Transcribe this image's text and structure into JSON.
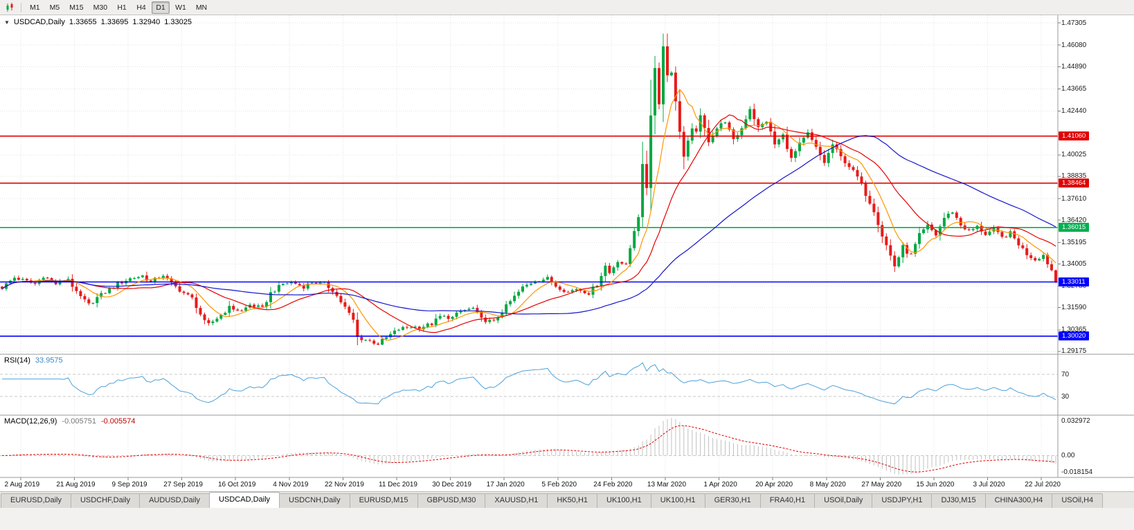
{
  "toolbar": {
    "timeframes": [
      {
        "label": "M1",
        "active": false
      },
      {
        "label": "M5",
        "active": false
      },
      {
        "label": "M15",
        "active": false
      },
      {
        "label": "M30",
        "active": false
      },
      {
        "label": "H1",
        "active": false
      },
      {
        "label": "H4",
        "active": false
      },
      {
        "label": "D1",
        "active": true
      },
      {
        "label": "W1",
        "active": false
      },
      {
        "label": "MN",
        "active": false
      }
    ]
  },
  "chart_header": {
    "symbol": "USDCAD,Daily",
    "open": "1.33655",
    "high": "1.33695",
    "low": "1.32940",
    "close": "1.33025"
  },
  "indicators": {
    "rsi": {
      "name": "RSI(14)",
      "value": "33.9575",
      "line_color": "#4da0d8",
      "levels": [
        "70",
        "30"
      ]
    },
    "macd": {
      "name": "MACD(12,26,9)",
      "value_main": "-0.005751",
      "value_signal": "-0.005574",
      "scale_labels": [
        "0.032972",
        "0.00",
        "-0.018154"
      ],
      "histogram_color": "#c0c0c0",
      "signal_color": "#e00000"
    }
  },
  "tabs": [
    {
      "label": "EURUSD,Daily",
      "active": false
    },
    {
      "label": "USDCHF,Daily",
      "active": false
    },
    {
      "label": "AUDUSD,Daily",
      "active": false
    },
    {
      "label": "USDCAD,Daily",
      "active": true
    },
    {
      "label": "USDCNH,Daily",
      "active": false
    },
    {
      "label": "EURUSD,M15",
      "active": false
    },
    {
      "label": "GBPUSD,M30",
      "active": false
    },
    {
      "label": "XAUUSD,H1",
      "active": false
    },
    {
      "label": "HK50,H1",
      "active": false
    },
    {
      "label": "UK100,H1",
      "active": false
    },
    {
      "label": "UK100,H1",
      "active": false
    },
    {
      "label": "GER30,H1",
      "active": false
    },
    {
      "label": "FRA40,H1",
      "active": false
    },
    {
      "label": "USOil,Daily",
      "active": false
    },
    {
      "label": "USDJPY,H1",
      "active": false
    },
    {
      "label": "DJ30,M15",
      "active": false
    },
    {
      "label": "CHINA300,H4",
      "active": false
    },
    {
      "label": "USOil,H4",
      "active": false
    }
  ],
  "chart_data": {
    "type": "candlestick",
    "symbol": "USDCAD",
    "timeframe": "Daily",
    "bars": 256,
    "visible_price_range": [
      1.2902,
      1.4773
    ],
    "current_bar": {
      "open": 1.33655,
      "high": 1.33695,
      "low": 1.3294,
      "close": 1.33025
    },
    "up_color": "#00a843",
    "down_color": "#e81b1b",
    "high_extreme": 1.4672,
    "low_extreme": 1.2952,
    "y_tick_labels": [
      "1.47305",
      "1.46080",
      "1.44890",
      "1.43665",
      "1.42440",
      "1.40025",
      "1.38835",
      "1.37610",
      "1.36420",
      "1.35195",
      "1.34005",
      "1.32780",
      "1.31590",
      "1.30365",
      "1.29175"
    ],
    "x_tick_labels": [
      "2 Aug 2019",
      "21 Aug 2019",
      "9 Sep 2019",
      "27 Sep 2019",
      "16 Oct 2019",
      "4 Nov 2019",
      "22 Nov 2019",
      "11 Dec 2019",
      "30 Dec 2019",
      "17 Jan 2020",
      "5 Feb 2020",
      "24 Feb 2020",
      "13 Mar 2020",
      "1 Apr 2020",
      "20 Apr 2020",
      "8 May 2020",
      "27 May 2020",
      "15 Jun 2020",
      "3 Jul 2020",
      "22 Jul 2020"
    ],
    "levels": [
      {
        "price": 1.4106,
        "label": "1.41060",
        "color": "#e00000",
        "kind": "resistance"
      },
      {
        "price": 1.38464,
        "label": "1.38464",
        "color": "#e00000",
        "kind": "resistance"
      },
      {
        "price": 1.36015,
        "label": "1.36015",
        "color": "#00b050",
        "kind": "pivot"
      },
      {
        "price": 1.33011,
        "label": "1.33011",
        "color": "#0000ff",
        "kind": "support"
      },
      {
        "price": 1.3002,
        "label": "1.30020",
        "color": "#0000ff",
        "kind": "support"
      }
    ],
    "moving_averages": [
      {
        "period": 8,
        "color": "#ff9500"
      },
      {
        "period": 20,
        "color": "#e60000"
      },
      {
        "period": 55,
        "color": "#1414cc"
      }
    ],
    "rsi": {
      "period": 14,
      "current": 33.9575
    },
    "macd": {
      "fast": 12,
      "slow": 26,
      "signal": 9,
      "current_main": -0.005751,
      "current_signal": -0.005574
    },
    "close_keypoints": [
      [
        0,
        1.327
      ],
      [
        3,
        1.3325
      ],
      [
        8,
        1.329
      ],
      [
        10,
        1.3335
      ],
      [
        13,
        1.329
      ],
      [
        16,
        1.332
      ],
      [
        18,
        1.324
      ],
      [
        21,
        1.3175
      ],
      [
        23,
        1.3215
      ],
      [
        26,
        1.326
      ],
      [
        28,
        1.329
      ],
      [
        31,
        1.332
      ],
      [
        34,
        1.3335
      ],
      [
        36,
        1.33
      ],
      [
        39,
        1.334
      ],
      [
        41,
        1.329
      ],
      [
        44,
        1.324
      ],
      [
        46,
        1.321
      ],
      [
        49,
        1.308
      ],
      [
        50,
        1.3065
      ],
      [
        53,
        1.312
      ],
      [
        55,
        1.316
      ],
      [
        58,
        1.314
      ],
      [
        60,
        1.3175
      ],
      [
        63,
        1.3155
      ],
      [
        65,
        1.324
      ],
      [
        68,
        1.329
      ],
      [
        70,
        1.33
      ],
      [
        73,
        1.3275
      ],
      [
        75,
        1.33
      ],
      [
        78,
        1.329
      ],
      [
        80,
        1.3255
      ],
      [
        83,
        1.316
      ],
      [
        85,
        1.309
      ],
      [
        86,
        1.2995
      ],
      [
        89,
        1.2975
      ],
      [
        91,
        1.296
      ],
      [
        94,
        1.301
      ],
      [
        96,
        1.304
      ],
      [
        99,
        1.3055
      ],
      [
        101,
        1.305
      ],
      [
        104,
        1.307
      ],
      [
        106,
        1.311
      ],
      [
        109,
        1.3105
      ],
      [
        111,
        1.314
      ],
      [
        114,
        1.3155
      ],
      [
        116,
        1.3095
      ],
      [
        119,
        1.308
      ],
      [
        121,
        1.314
      ],
      [
        124,
        1.322
      ],
      [
        126,
        1.327
      ],
      [
        129,
        1.331
      ],
      [
        132,
        1.332
      ],
      [
        134,
        1.328
      ],
      [
        137,
        1.3245
      ],
      [
        139,
        1.3265
      ],
      [
        142,
        1.324
      ],
      [
        144,
        1.329
      ],
      [
        146,
        1.339
      ],
      [
        147,
        1.335
      ],
      [
        149,
        1.342
      ],
      [
        151,
        1.339
      ],
      [
        152,
        1.349
      ],
      [
        153,
        1.36
      ],
      [
        154,
        1.368
      ],
      [
        155,
        1.392
      ],
      [
        156,
        1.383
      ],
      [
        157,
        1.424
      ],
      [
        158,
        1.448
      ],
      [
        159,
        1.431
      ],
      [
        160,
        1.46
      ],
      [
        161,
        1.445
      ],
      [
        162,
        1.448
      ],
      [
        163,
        1.428
      ],
      [
        164,
        1.415
      ],
      [
        165,
        1.399
      ],
      [
        167,
        1.412
      ],
      [
        169,
        1.419
      ],
      [
        171,
        1.408
      ],
      [
        173,
        1.415
      ],
      [
        175,
        1.419
      ],
      [
        177,
        1.408
      ],
      [
        179,
        1.415
      ],
      [
        181,
        1.426
      ],
      [
        183,
        1.415
      ],
      [
        185,
        1.419
      ],
      [
        187,
        1.406
      ],
      [
        189,
        1.411
      ],
      [
        191,
        1.398
      ],
      [
        193,
        1.406
      ],
      [
        195,
        1.412
      ],
      [
        197,
        1.404
      ],
      [
        199,
        1.396
      ],
      [
        201,
        1.406
      ],
      [
        203,
        1.399
      ],
      [
        205,
        1.394
      ],
      [
        207,
        1.388
      ],
      [
        209,
        1.379
      ],
      [
        211,
        1.37
      ],
      [
        213,
        1.356
      ],
      [
        215,
        1.3445
      ],
      [
        216,
        1.339
      ],
      [
        218,
        1.349
      ],
      [
        220,
        1.345
      ],
      [
        222,
        1.356
      ],
      [
        224,
        1.361
      ],
      [
        226,
        1.356
      ],
      [
        228,
        1.3655
      ],
      [
        230,
        1.369
      ],
      [
        232,
        1.3615
      ],
      [
        234,
        1.358
      ],
      [
        236,
        1.3605
      ],
      [
        238,
        1.3565
      ],
      [
        240,
        1.359
      ],
      [
        242,
        1.3545
      ],
      [
        244,
        1.357
      ],
      [
        246,
        1.351
      ],
      [
        248,
        1.3455
      ],
      [
        250,
        1.3425
      ],
      [
        252,
        1.345
      ],
      [
        253,
        1.3405
      ],
      [
        254,
        1.33655
      ],
      [
        255,
        1.33025
      ]
    ]
  }
}
